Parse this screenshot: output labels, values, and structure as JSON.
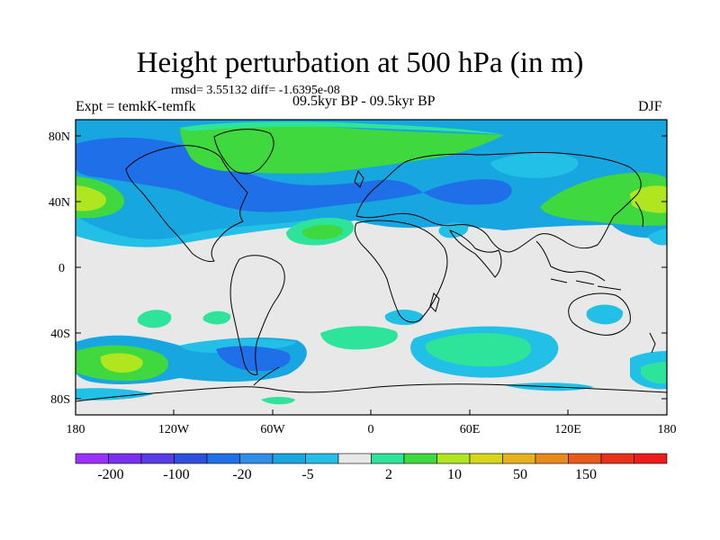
{
  "title": "Height perturbation at 500 hPa (in m)",
  "stats": "rmsd= 3.55132 diff= -1.6395e-08",
  "experiment": "Expt = temkK-temfk",
  "period": "09.5kyr BP - 09.5kyr BP",
  "season": "DJF",
  "lat_ticks": [
    "80N",
    "40N",
    "0",
    "40S",
    "80S"
  ],
  "lon_ticks": [
    "180",
    "120W",
    "60W",
    "0",
    "60E",
    "120E",
    "180"
  ],
  "colorbar": {
    "labels": [
      "-200",
      "-100",
      "-20",
      "-5",
      "2",
      "10",
      "50",
      "150"
    ],
    "colors": [
      "#9b30ff",
      "#7a30f0",
      "#5a3be8",
      "#2f4fe0",
      "#1f6fe8",
      "#2f8fe8",
      "#17a6e0",
      "#22c0e6",
      "#e8e8e8",
      "#2ee39a",
      "#3fd83f",
      "#b0e61f",
      "#d6d61a",
      "#e6b41a",
      "#e88a1a",
      "#e85a1a",
      "#e8301a",
      "#f01a1a"
    ]
  },
  "map": {
    "background_color": "#e8e8e8",
    "contour_colors": {
      "dark_blue": "#1f6fe8",
      "blue": "#17a6e0",
      "light_blue": "#22c0e6",
      "teal_green": "#2ee39a",
      "green": "#3fd83f",
      "yellow_green": "#b0e61f"
    }
  }
}
